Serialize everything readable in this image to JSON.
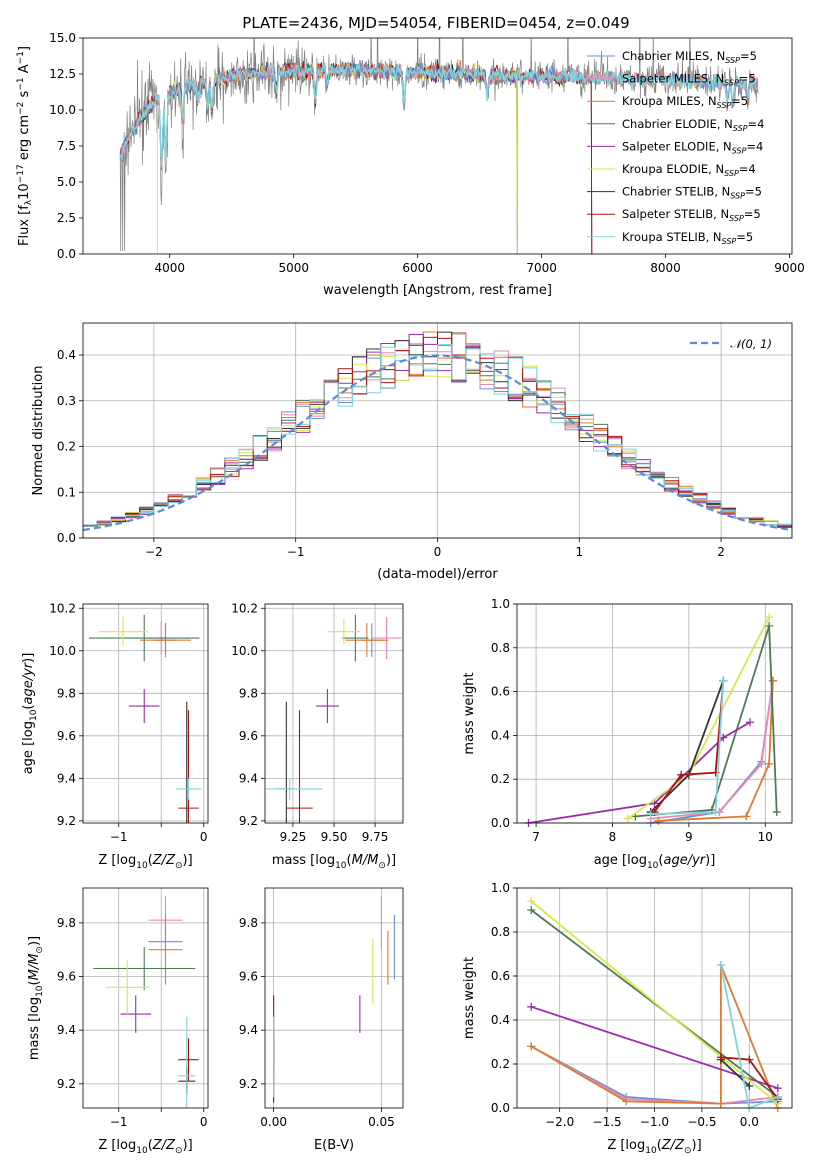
{
  "figure": {
    "title": "PLATE=2436, MJD=54054, FIBERID=0454, z=0.049"
  },
  "colors": {
    "chabrier_miles": "#6a8fd8",
    "salpeter_miles": "#e88ab5",
    "kroupa_miles": "#e07a2e",
    "chabrier_elodie": "#4f7a55",
    "salpeter_elodie": "#9b2ea8",
    "kroupa_elodie": "#d4e84a",
    "chabrier_stelib": "#333333",
    "salpeter_stelib": "#b01010",
    "kroupa_stelib": "#7fd4dc",
    "data": "#808080"
  },
  "chart_data": [
    {
      "id": "spectrum",
      "type": "line",
      "title": "PLATE=2436, MJD=54054, FIBERID=0454, z=0.049",
      "xlabel": "wavelength [Angstrom, rest frame]",
      "ylabel": "Flux [f_λ10^-17 erg cm^-2 s^-1 A^-1]",
      "xlim": [
        3300,
        9020
      ],
      "ylim": [
        0,
        15
      ],
      "xticks": [
        4000,
        5000,
        6000,
        7000,
        8000,
        9000
      ],
      "yticks": [
        0.0,
        2.5,
        5.0,
        7.5,
        10.0,
        12.5,
        15.0
      ],
      "grid": false,
      "legend_position": "right",
      "series": [
        {
          "name": "Chabrier MILES, N_SSP=5",
          "key": "chabrier_miles"
        },
        {
          "name": "Salpeter MILES, N_SSP=5",
          "key": "salpeter_miles"
        },
        {
          "name": "Kroupa MILES, N_SSP=5",
          "key": "kroupa_miles"
        },
        {
          "name": "Chabrier ELODIE, N_SSP=4",
          "key": "chabrier_elodie"
        },
        {
          "name": "Salpeter ELODIE, N_SSP=4",
          "key": "salpeter_elodie"
        },
        {
          "name": "Kroupa ELODIE, N_SSP=4",
          "key": "kroupa_elodie"
        },
        {
          "name": "Chabrier STELIB, N_SSP=5",
          "key": "chabrier_stelib"
        },
        {
          "name": "Salpeter STELIB, N_SSP=5",
          "key": "salpeter_stelib"
        },
        {
          "name": "Kroupa STELIB, N_SSP=5",
          "key": "kroupa_stelib"
        }
      ],
      "legend_labels": [
        {
          "pre": "Chabrier MILES, N",
          "sub": "SSP",
          "post": "=5"
        },
        {
          "pre": "Salpeter MILES, N",
          "sub": "SSP",
          "post": "=5"
        },
        {
          "pre": "Kroupa MILES, N",
          "sub": "SSP",
          "post": "=5"
        },
        {
          "pre": "Chabrier ELODIE, N",
          "sub": "SSP",
          "post": "=4"
        },
        {
          "pre": "Salpeter ELODIE, N",
          "sub": "SSP",
          "post": "=4"
        },
        {
          "pre": "Kroupa ELODIE, N",
          "sub": "SSP",
          "post": "=4"
        },
        {
          "pre": "Chabrier STELIB, N",
          "sub": "SSP",
          "post": "=5"
        },
        {
          "pre": "Salpeter STELIB, N",
          "sub": "SSP",
          "post": "=5"
        },
        {
          "pre": "Kroupa STELIB, N",
          "sub": "SSP",
          "post": "=5"
        }
      ],
      "ranges": {
        "chabrier_miles": [
          3600,
          8750
        ],
        "salpeter_miles": [
          3600,
          8750
        ],
        "kroupa_miles": [
          3600,
          8750
        ],
        "chabrier_elodie": [
          3600,
          6800
        ],
        "salpeter_elodie": [
          3600,
          6800
        ],
        "kroupa_elodie": [
          3900,
          6800
        ],
        "chabrier_stelib": [
          3600,
          7400
        ],
        "salpeter_stelib": [
          3600,
          7400
        ],
        "kroupa_stelib": [
          3600,
          8750
        ]
      },
      "data_range": [
        3600,
        8750
      ],
      "continuum": [
        [
          3600,
          6.8
        ],
        [
          3650,
          7.8
        ],
        [
          3700,
          8.6
        ],
        [
          3800,
          9.8
        ],
        [
          3900,
          10.8
        ],
        [
          4000,
          11.2
        ],
        [
          4200,
          11.8
        ],
        [
          4500,
          12.4
        ],
        [
          5000,
          12.7
        ],
        [
          5500,
          12.8
        ],
        [
          6000,
          12.6
        ],
        [
          6500,
          12.4
        ],
        [
          7000,
          12.3
        ],
        [
          7500,
          12.2
        ],
        [
          8000,
          12.1
        ],
        [
          8500,
          11.9
        ],
        [
          8750,
          11.8
        ]
      ],
      "absorption_lines": [
        [
          3934,
          5.5
        ],
        [
          3969,
          4.8
        ],
        [
          4102,
          2.5
        ],
        [
          4227,
          1.5
        ],
        [
          4304,
          2.0
        ],
        [
          4340,
          2.5
        ],
        [
          4861,
          1.5
        ],
        [
          5175,
          2.5
        ],
        [
          5270,
          1.2
        ],
        [
          5890,
          2.5
        ],
        [
          6563,
          1.5
        ],
        [
          8498,
          1.2
        ],
        [
          8542,
          1.5
        ],
        [
          8662,
          1.3
        ]
      ]
    },
    {
      "id": "residual-histogram",
      "type": "step-histogram",
      "xlabel": "(data-model)/error",
      "ylabel": "Normed distribution",
      "xlim": [
        -2.5,
        2.5
      ],
      "ylim": [
        0,
        0.47
      ],
      "xticks": [
        -2,
        -1,
        0,
        1,
        2
      ],
      "yticks": [
        0.0,
        0.1,
        0.2,
        0.3,
        0.4
      ],
      "grid": true,
      "legend_position": "top-right",
      "reference_curve": {
        "name": "𝒩(0, 1)",
        "mu": 0,
        "sigma": 1
      },
      "bins_per_model": 50,
      "series_keys": [
        "chabrier_miles",
        "salpeter_miles",
        "kroupa_miles",
        "chabrier_elodie",
        "salpeter_elodie",
        "kroupa_elodie",
        "chabrier_stelib",
        "salpeter_stelib",
        "kroupa_stelib"
      ]
    },
    {
      "id": "age-vs-Z",
      "type": "errorbar",
      "xlabel": "Z [log10(Z/Z☉)]",
      "ylabel": "age [log10(age/yr)]",
      "xlim": [
        -1.42,
        0.05
      ],
      "ylim": [
        9.19,
        10.22
      ],
      "xticks": [
        -1,
        -0.5,
        0
      ],
      "xtick_labels": [
        "−1",
        "",
        "0"
      ],
      "yticks": [
        9.2,
        9.4,
        9.6,
        9.8,
        10.0,
        10.2
      ],
      "grid": true,
      "points": [
        {
          "key": "chabrier_miles",
          "x": -0.45,
          "y": 10.05,
          "xerr": 0.12,
          "yerr": 0.08
        },
        {
          "key": "salpeter_miles",
          "x": -0.5,
          "y": 10.06,
          "xerr": 0.15,
          "yerr": 0.08
        },
        {
          "key": "kroupa_miles",
          "x": -0.45,
          "y": 10.05,
          "xerr": 0.3,
          "yerr": 0.08
        },
        {
          "key": "chabrier_elodie",
          "x": -0.7,
          "y": 10.06,
          "xerr": 0.65,
          "yerr": 0.11
        },
        {
          "key": "salpeter_elodie",
          "x": -0.7,
          "y": 9.74,
          "xerr": 0.18,
          "yerr": 0.08
        },
        {
          "key": "kroupa_elodie",
          "x": -0.95,
          "y": 10.09,
          "xerr": 0.28,
          "yerr": 0.07
        },
        {
          "key": "chabrier_stelib",
          "x": -0.2,
          "y": 9.35,
          "xerr": 0.04,
          "yerr": 0.41
        },
        {
          "key": "salpeter_stelib",
          "x": -0.18,
          "y": 9.26,
          "xerr": 0.12,
          "yerr": 0.46
        },
        {
          "key": "kroupa_stelib",
          "x": -0.18,
          "y": 9.35,
          "xerr": 0.15,
          "yerr": 0.05
        }
      ]
    },
    {
      "id": "age-vs-mass",
      "type": "errorbar",
      "xlabel": "mass [log10(M/M☉)]",
      "ylabel": "",
      "xlim": [
        9.08,
        9.92
      ],
      "ylim": [
        9.19,
        10.22
      ],
      "xticks": [
        9.25,
        9.5,
        9.75
      ],
      "yticks": [
        9.2,
        9.4,
        9.6,
        9.8,
        10.0,
        10.2
      ],
      "grid": true,
      "points": [
        {
          "key": "chabrier_miles",
          "x": 9.73,
          "y": 10.05,
          "xerr": 0.07,
          "yerr": 0.08
        },
        {
          "key": "salpeter_miles",
          "x": 9.82,
          "y": 10.06,
          "xerr": 0.09,
          "yerr": 0.1
        },
        {
          "key": "kroupa_miles",
          "x": 9.7,
          "y": 10.05,
          "xerr": 0.13,
          "yerr": 0.08
        },
        {
          "key": "chabrier_elodie",
          "x": 9.63,
          "y": 10.06,
          "xerr": 0.08,
          "yerr": 0.11
        },
        {
          "key": "salpeter_elodie",
          "x": 9.46,
          "y": 9.74,
          "xerr": 0.07,
          "yerr": 0.08
        },
        {
          "key": "kroupa_elodie",
          "x": 9.56,
          "y": 10.09,
          "xerr": 0.1,
          "yerr": 0.06
        },
        {
          "key": "chabrier_stelib",
          "x": 9.21,
          "y": 9.35,
          "xerr": 0.05,
          "yerr": 0.41
        },
        {
          "key": "salpeter_stelib",
          "x": 9.29,
          "y": 9.26,
          "xerr": 0.08,
          "yerr": 0.46
        },
        {
          "key": "kroupa_stelib",
          "x": 9.23,
          "y": 9.35,
          "xerr": 0.2,
          "yerr": 0.05
        }
      ]
    },
    {
      "id": "mass-weight-vs-age",
      "type": "line",
      "xlabel": "age [log10(age/yr)]",
      "ylabel": "mass weight",
      "xlim": [
        6.75,
        10.35
      ],
      "ylim": [
        0,
        1
      ],
      "xticks": [
        7,
        8,
        9,
        10
      ],
      "yticks": [
        0.0,
        0.2,
        0.4,
        0.6,
        0.8,
        1.0
      ],
      "grid": true,
      "series": [
        {
          "key": "chabrier_miles",
          "x": [
            8.5,
            9.4,
            9.95,
            10.1
          ],
          "y": [
            0.0,
            0.05,
            0.28,
            0.65
          ]
        },
        {
          "key": "salpeter_miles",
          "x": [
            8.5,
            9.4,
            9.95,
            10.1
          ],
          "y": [
            0.02,
            0.05,
            0.27,
            0.65
          ]
        },
        {
          "key": "kroupa_miles",
          "x": [
            8.6,
            9.75,
            10.05,
            10.1
          ],
          "y": [
            0.01,
            0.03,
            0.27,
            0.65
          ]
        },
        {
          "key": "chabrier_elodie",
          "x": [
            8.3,
            9.3,
            10.05,
            10.15
          ],
          "y": [
            0.03,
            0.06,
            0.9,
            0.05
          ]
        },
        {
          "key": "salpeter_elodie",
          "x": [
            6.9,
            8.55,
            9.45,
            9.8
          ],
          "y": [
            0.0,
            0.09,
            0.39,
            0.46
          ]
        },
        {
          "key": "kroupa_elodie",
          "x": [
            8.2,
            9.0,
            10.05
          ],
          "y": [
            0.02,
            0.22,
            0.94
          ]
        },
        {
          "key": "chabrier_stelib",
          "x": [
            8.5,
            9.0,
            9.45
          ],
          "y": [
            0.05,
            0.22,
            0.65
          ]
        },
        {
          "key": "salpeter_stelib",
          "x": [
            8.55,
            8.9,
            9.35,
            9.45
          ],
          "y": [
            0.05,
            0.22,
            0.23,
            0.65
          ]
        },
        {
          "key": "kroupa_stelib",
          "x": [
            8.5,
            9.35,
            9.45
          ],
          "y": [
            0.04,
            0.05,
            0.65
          ]
        }
      ]
    },
    {
      "id": "mass-vs-Z",
      "type": "errorbar",
      "xlabel": "Z [log10(Z/Z☉)]",
      "ylabel": "mass [log10(M/M☉)]",
      "xlim": [
        -1.42,
        0.05
      ],
      "ylim": [
        9.11,
        9.93
      ],
      "xticks": [
        -1,
        -0.5,
        0
      ],
      "xtick_labels": [
        "−1",
        "",
        "0"
      ],
      "yticks": [
        9.2,
        9.4,
        9.6,
        9.8
      ],
      "grid": true,
      "points": [
        {
          "key": "chabrier_miles",
          "x": -0.45,
          "y": 9.73,
          "xerr": 0.2,
          "yerr": 0.07
        },
        {
          "key": "salpeter_miles",
          "x": -0.45,
          "y": 9.81,
          "xerr": 0.2,
          "yerr": 0.09
        },
        {
          "key": "kroupa_miles",
          "x": -0.45,
          "y": 9.7,
          "xerr": 0.2,
          "yerr": 0.13
        },
        {
          "key": "chabrier_elodie",
          "x": -0.7,
          "y": 9.63,
          "xerr": 0.6,
          "yerr": 0.08
        },
        {
          "key": "salpeter_elodie",
          "x": -0.8,
          "y": 9.46,
          "xerr": 0.18,
          "yerr": 0.07
        },
        {
          "key": "kroupa_elodie",
          "x": -0.9,
          "y": 9.56,
          "xerr": 0.25,
          "yerr": 0.1
        },
        {
          "key": "chabrier_stelib",
          "x": -0.2,
          "y": 9.21,
          "xerr": 0.1,
          "yerr": 0.05
        },
        {
          "key": "salpeter_stelib",
          "x": -0.18,
          "y": 9.29,
          "xerr": 0.12,
          "yerr": 0.08
        },
        {
          "key": "kroupa_stelib",
          "x": -0.2,
          "y": 9.23,
          "xerr": 0.1,
          "yerr": 0.22
        }
      ]
    },
    {
      "id": "mass-vs-ebv",
      "type": "errorbar",
      "xlabel": "E(B-V)",
      "ylabel": "",
      "xlim": [
        -0.004,
        0.06
      ],
      "ylim": [
        9.11,
        9.93
      ],
      "xticks": [
        0.0,
        0.05
      ],
      "xtick_labels": [
        "0.00",
        "0.05"
      ],
      "yticks": [
        9.2,
        9.4,
        9.6,
        9.8
      ],
      "grid": true,
      "points": [
        {
          "key": "chabrier_miles",
          "x": 0.056,
          "y": 9.71,
          "xerr": 0,
          "yerr": 0.12
        },
        {
          "key": "salpeter_miles",
          "x": 0.05,
          "y": 9.8,
          "xerr": 0,
          "yerr": 0.1
        },
        {
          "key": "kroupa_miles",
          "x": 0.053,
          "y": 9.67,
          "xerr": 0,
          "yerr": 0.1
        },
        {
          "key": "chabrier_elodie",
          "x": 0.0,
          "y": 9.3,
          "xerr": 0,
          "yerr": 0.1
        },
        {
          "key": "salpeter_elodie",
          "x": 0.04,
          "y": 9.46,
          "xerr": 0,
          "yerr": 0.07
        },
        {
          "key": "kroupa_elodie",
          "x": 0.046,
          "y": 9.62,
          "xerr": 0,
          "yerr": 0.12
        },
        {
          "key": "chabrier_stelib",
          "x": 0.0,
          "y": 9.25,
          "xerr": 0,
          "yerr": 0.12
        },
        {
          "key": "salpeter_stelib",
          "x": 0.0,
          "y": 9.4,
          "xerr": 0,
          "yerr": 0.13
        },
        {
          "key": "kroupa_stelib",
          "x": 0.0,
          "y": 9.3,
          "xerr": 0,
          "yerr": 0.15
        }
      ]
    },
    {
      "id": "mass-weight-vs-Z",
      "type": "line",
      "xlabel": "Z [log10(Z/Z☉)]",
      "ylabel": "mass weight",
      "xlim": [
        -2.45,
        0.45
      ],
      "ylim": [
        0,
        1
      ],
      "xticks": [
        -2.0,
        -1.5,
        -1.0,
        -0.5,
        0.0
      ],
      "xtick_labels": [
        "−2.0",
        "−1.5",
        "−1.0",
        "−0.5",
        "0.0"
      ],
      "yticks": [
        0.0,
        0.2,
        0.4,
        0.6,
        0.8,
        1.0
      ],
      "grid": true,
      "series": [
        {
          "key": "chabrier_miles",
          "x": [
            -2.3,
            -1.3,
            -0.3,
            0.3
          ],
          "y": [
            0.28,
            0.05,
            0.02,
            0.03
          ]
        },
        {
          "key": "salpeter_miles",
          "x": [
            -2.3,
            -1.3,
            -0.3,
            0.3
          ],
          "y": [
            0.28,
            0.04,
            0.02,
            0.05
          ]
        },
        {
          "key": "kroupa_miles",
          "x": [
            -2.3,
            -1.3,
            -0.3,
            -0.3,
            0.3
          ],
          "y": [
            0.28,
            0.03,
            0.02,
            0.65,
            0.0
          ]
        },
        {
          "key": "chabrier_elodie",
          "x": [
            -2.3,
            0.3
          ],
          "y": [
            0.9,
            0.05
          ]
        },
        {
          "key": "salpeter_elodie",
          "x": [
            -2.3,
            0.3
          ],
          "y": [
            0.46,
            0.09
          ]
        },
        {
          "key": "kroupa_elodie",
          "x": [
            -2.3,
            0.3
          ],
          "y": [
            0.94,
            0.02
          ]
        },
        {
          "key": "chabrier_stelib",
          "x": [
            -0.3,
            0.0
          ],
          "y": [
            0.22,
            0.1
          ]
        },
        {
          "key": "salpeter_stelib",
          "x": [
            -0.3,
            0.0,
            0.3
          ],
          "y": [
            0.23,
            0.22,
            0.04
          ]
        },
        {
          "key": "kroupa_stelib",
          "x": [
            -0.3,
            0.0,
            0.3
          ],
          "y": [
            0.65,
            0.0,
            0.05
          ]
        }
      ]
    }
  ]
}
